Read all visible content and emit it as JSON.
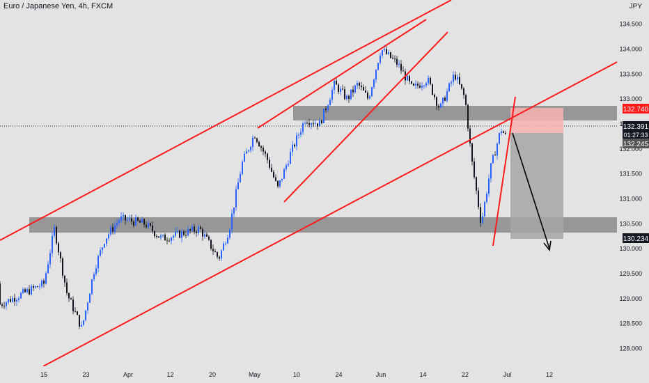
{
  "header": {
    "symbol_title": "Euro / Japanese Yen, 4h, FXCM",
    "axis_unit": "JPY"
  },
  "chart_data": {
    "type": "candlestick",
    "ylim": [
      127.7,
      134.9
    ],
    "y_ticks": [
      128.0,
      128.5,
      129.0,
      129.5,
      130.0,
      130.5,
      131.0,
      131.5,
      132.0,
      132.5,
      133.0,
      133.5,
      134.0,
      134.5
    ],
    "y_tick_labels": [
      "128.000",
      "128.500",
      "129.000",
      "129.500",
      "130.000",
      "130.500",
      "131.000",
      "131.500",
      "132.000",
      "132.500",
      "133.000",
      "133.500",
      "134.000",
      "134.500"
    ],
    "x_tick_labels": [
      "15",
      "23",
      "Apr",
      "12",
      "20",
      "May",
      "10",
      "24",
      "Jun",
      "14",
      "22",
      "Jul",
      "12"
    ],
    "x_tick_index": [
      0,
      1,
      2,
      3,
      4,
      5,
      6,
      7,
      8,
      9,
      10,
      11,
      12
    ],
    "price_key_points": [
      [
        0,
        129.3
      ],
      [
        0.25,
        130.4
      ],
      [
        0.55,
        129.1
      ],
      [
        0.9,
        128.4
      ],
      [
        1.2,
        129.6
      ],
      [
        1.45,
        130.2
      ],
      [
        1.8,
        130.6
      ],
      [
        2.4,
        130.5
      ],
      [
        2.8,
        130.2
      ],
      [
        3.7,
        130.4
      ],
      [
        4.15,
        129.8
      ],
      [
        4.4,
        130.4
      ],
      [
        4.7,
        131.7
      ],
      [
        5.0,
        132.3
      ],
      [
        5.3,
        131.8
      ],
      [
        5.55,
        131.2
      ],
      [
        5.85,
        131.9
      ],
      [
        6.2,
        132.6
      ],
      [
        6.55,
        132.5
      ],
      [
        6.9,
        133.3
      ],
      [
        7.2,
        133.0
      ],
      [
        7.45,
        133.3
      ],
      [
        7.7,
        133.0
      ],
      [
        8.0,
        134.0
      ],
      [
        8.4,
        133.7
      ],
      [
        8.75,
        133.2
      ],
      [
        9.1,
        133.4
      ],
      [
        9.4,
        132.8
      ],
      [
        9.75,
        133.5
      ],
      [
        10.0,
        133.0
      ],
      [
        10.15,
        131.8
      ],
      [
        10.38,
        130.5
      ],
      [
        10.6,
        131.6
      ],
      [
        10.85,
        132.4
      ],
      [
        11.0,
        132.2
      ]
    ],
    "price_line": {
      "value": 132.391,
      "label": "132.391",
      "countdown": "01:27:33"
    },
    "annotations": {
      "resistance_label": "132.740",
      "entry_label": "132.245",
      "target_label": "130.234"
    },
    "colors": {
      "up": "#2962ff",
      "down": "#131722",
      "trendline": "#ff1a1a",
      "zone": "#6e6e6e",
      "stop": "#f7b2b2",
      "target": "#a6a6a6",
      "background": "#e3e3e3",
      "text": "#131722"
    }
  }
}
